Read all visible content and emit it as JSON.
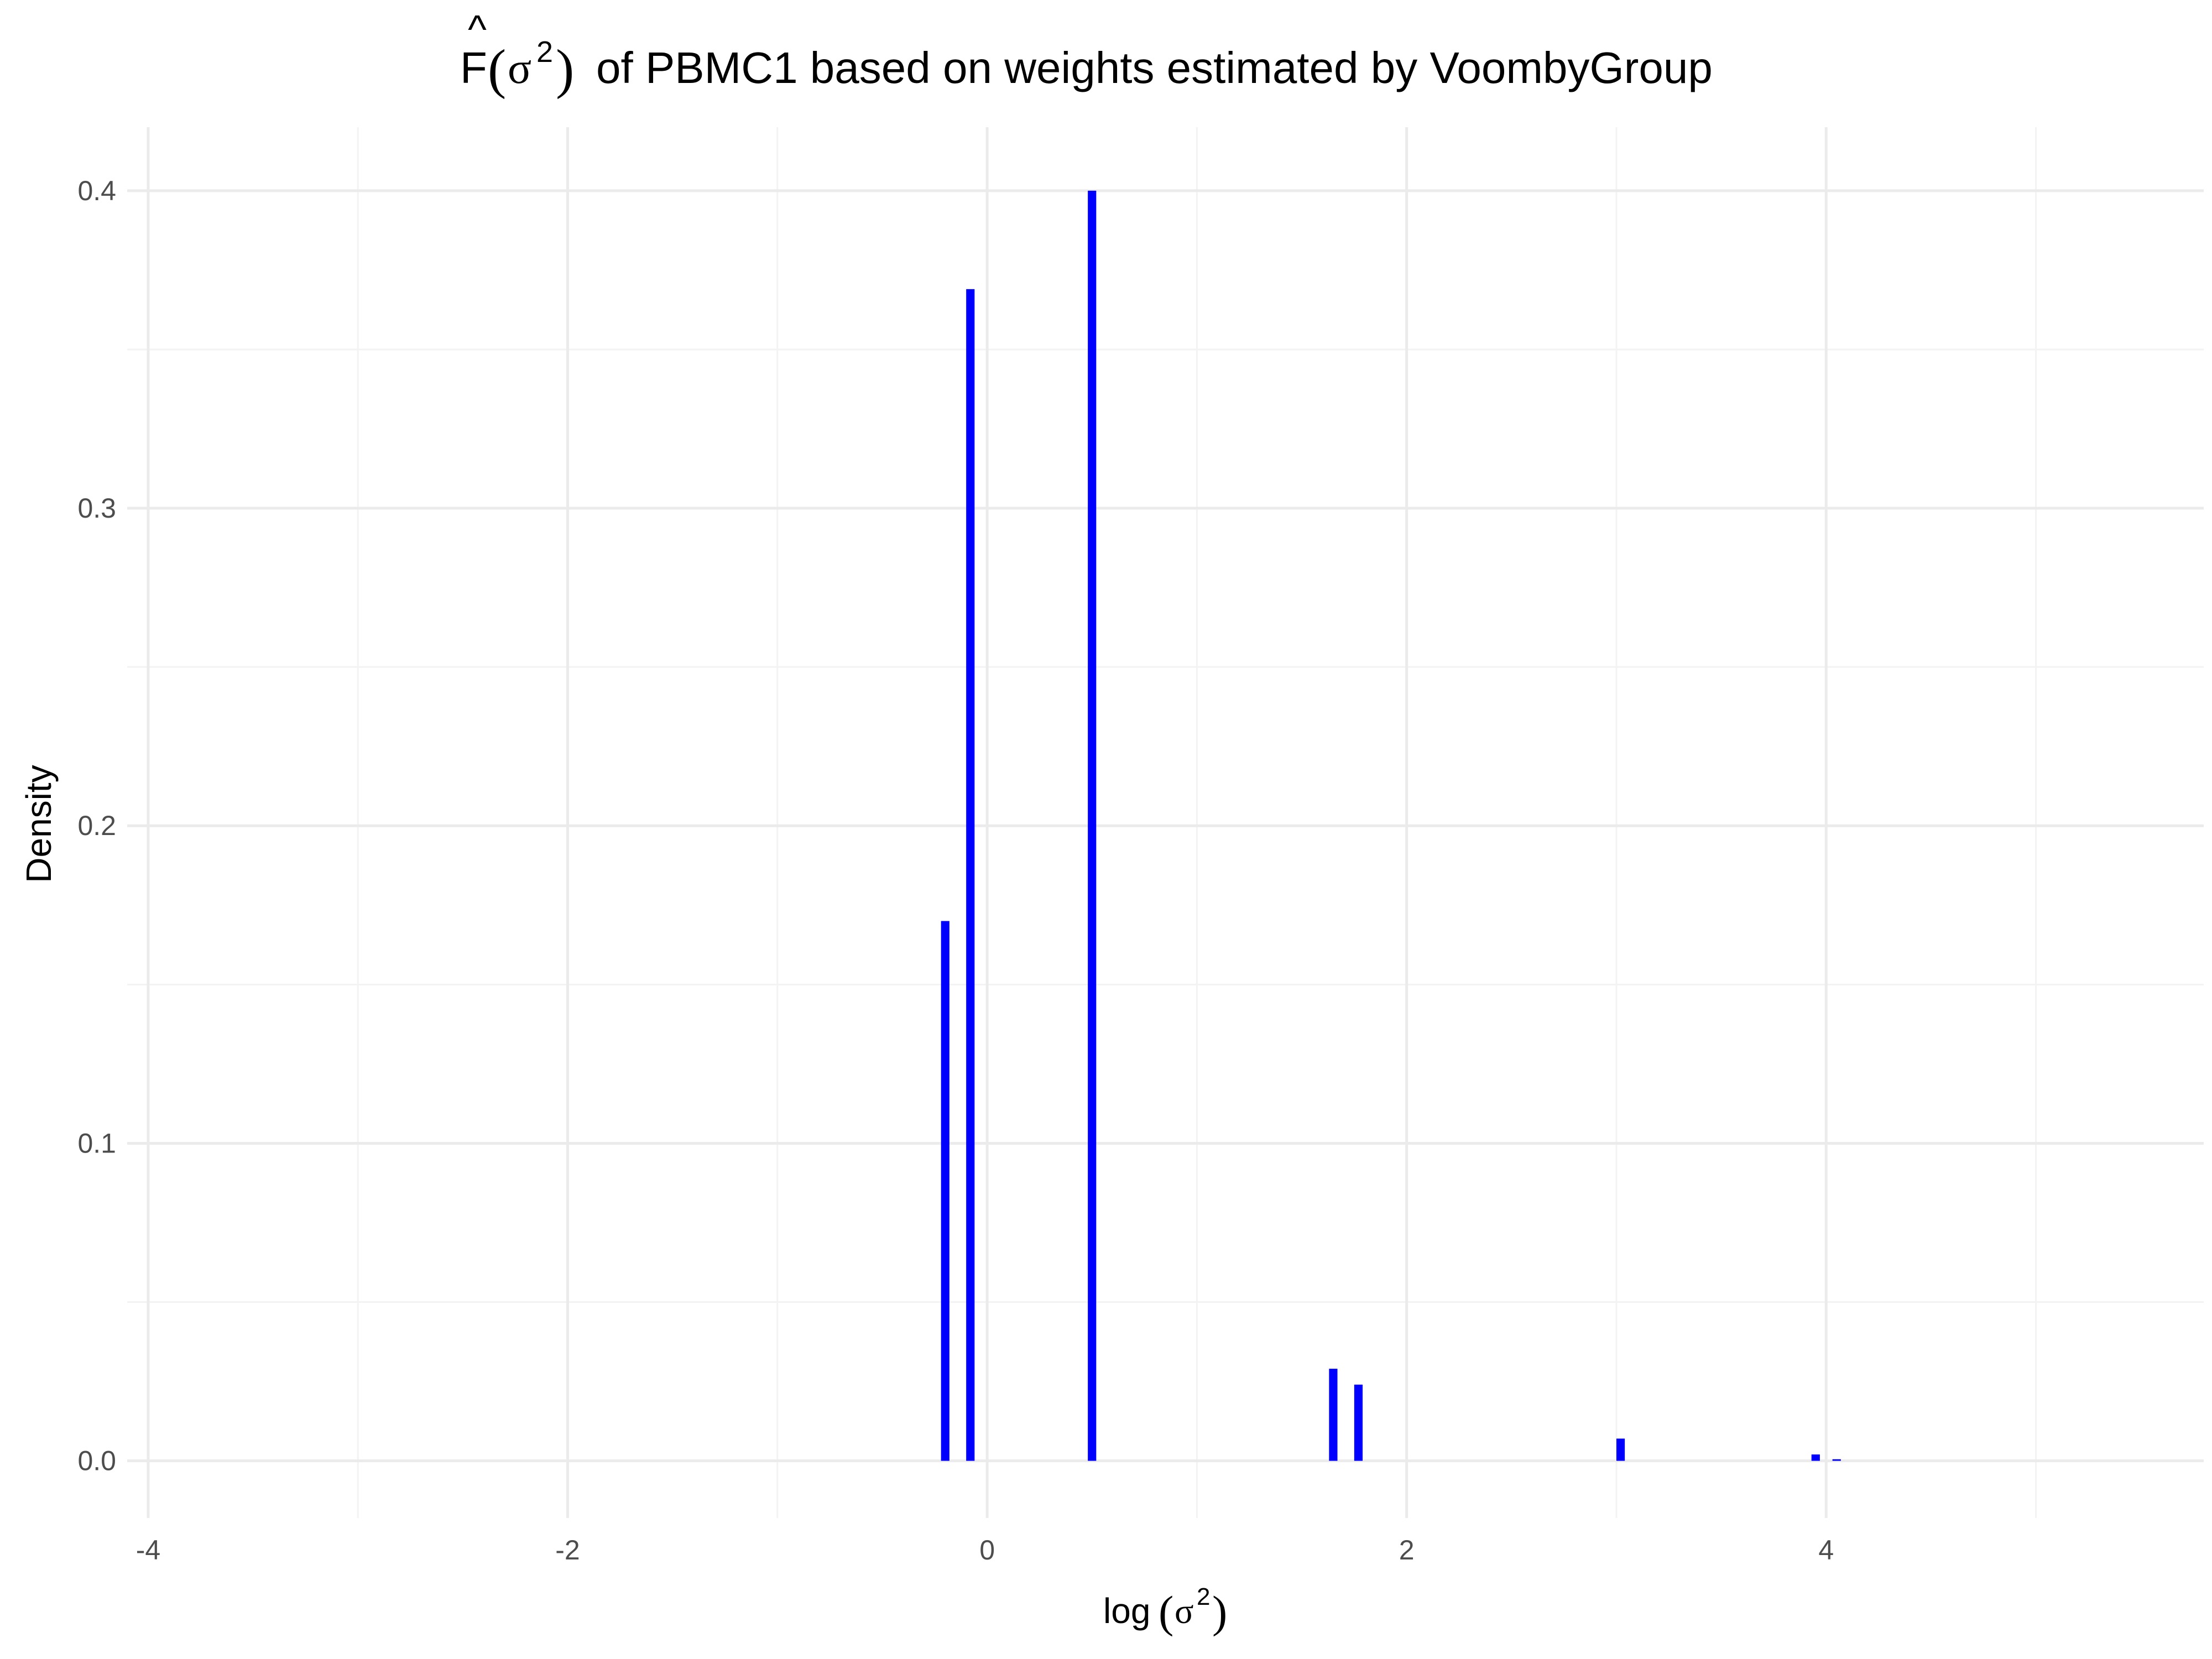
{
  "chart_data": {
    "type": "bar",
    "title": {
      "hat_symbol": "^",
      "function_letter": "F",
      "open_paren": "(",
      "sigma": "σ",
      "superscript": "2",
      "close_paren": ")",
      "text": "of PBMC1 based on weights estimated by VoombyGroup"
    },
    "xlabel": {
      "prefix": "log",
      "open_paren": "(",
      "sigma": "σ",
      "superscript": "2",
      "close_paren": ")"
    },
    "ylabel": "Density",
    "xlim": [
      -4.1,
      5.8
    ],
    "ylim": [
      -0.018,
      0.42
    ],
    "x_ticks": [
      -4,
      -2,
      0,
      2,
      4
    ],
    "x_tick_labels": [
      "-4",
      "-2",
      "0",
      "2",
      "4"
    ],
    "x_minor_ticks": [
      -3,
      -1,
      1,
      3,
      5
    ],
    "y_ticks": [
      0.0,
      0.1,
      0.2,
      0.3,
      0.4
    ],
    "y_tick_labels": [
      "0.0",
      "0.1",
      "0.2",
      "0.3",
      "0.4"
    ],
    "y_minor_ticks": [
      0.05,
      0.15,
      0.25,
      0.35
    ],
    "grid": true,
    "bar_width": 0.04,
    "x": [
      -0.2,
      -0.08,
      0.5,
      1.65,
      1.77,
      3.02,
      3.95,
      4.05
    ],
    "values": [
      0.17,
      0.369,
      0.4,
      0.029,
      0.024,
      0.007,
      0.002,
      0.0005
    ],
    "colors": {
      "bar": "#0000ff",
      "grid_major": "#ebebeb",
      "grid_minor": "#f3f3f3",
      "tick_text": "#4d4d4d",
      "title_text": "#000000"
    }
  }
}
